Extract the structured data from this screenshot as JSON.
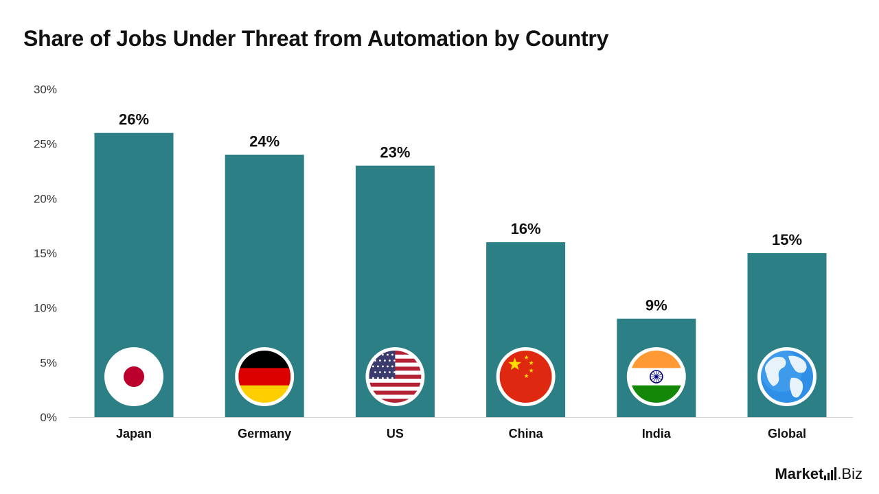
{
  "chart_data": {
    "type": "bar",
    "title": "Share of Jobs Under Threat from Automation by Country",
    "categories": [
      "Japan",
      "Germany",
      "US",
      "China",
      "India",
      "Global"
    ],
    "values": [
      26,
      24,
      23,
      16,
      9,
      15
    ],
    "data_labels": [
      "26%",
      "24%",
      "23%",
      "16%",
      "9%",
      "15%"
    ],
    "y_ticks": [
      0,
      5,
      10,
      15,
      20,
      25,
      30
    ],
    "y_tick_labels": [
      "0%",
      "5%",
      "10%",
      "15%",
      "20%",
      "25%",
      "30%"
    ],
    "ylim": [
      0,
      30
    ],
    "xlabel": "",
    "ylabel": "",
    "grid": false,
    "legend": "none",
    "bar_color": "#2B7F85",
    "flag_icons": [
      "japan-flag-icon",
      "germany-flag-icon",
      "us-flag-icon",
      "china-flag-icon",
      "india-flag-icon",
      "globe-icon"
    ]
  },
  "branding": {
    "part1": "Market",
    "part2": ".Biz"
  }
}
